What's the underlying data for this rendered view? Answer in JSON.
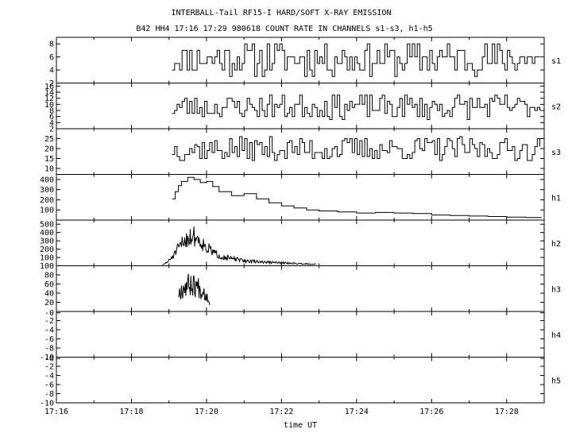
{
  "title_line1": "INTERBALL-Tail RF15-I HARD/SOFT X-RAY EMISSION",
  "title_line2": "B42 HH4 17:16 17:29 980618  COUNT RATE IN CHANNELS s1-s3, h1-h5",
  "xlabel": "time UT",
  "x_ticks": [
    "17:16",
    "17:18",
    "17:20",
    "17:22",
    "17:24",
    "17:26",
    "17:28"
  ],
  "chart_data": [
    {
      "type": "line",
      "name": "s1",
      "ylim": [
        2,
        9
      ],
      "yticks": [
        "8",
        "6",
        "4",
        "2"
      ],
      "ytick_values": [
        8,
        6,
        4,
        2
      ],
      "x_range": [
        "17:19:05",
        "17:28:55"
      ],
      "baseline": 5,
      "amplitude": 2.5,
      "seed": 11,
      "series": [
        {
          "name": "s1",
          "x": [],
          "y": []
        }
      ]
    },
    {
      "type": "line",
      "name": "s2",
      "ylim": [
        2,
        17
      ],
      "yticks": [
        "16",
        "14",
        "12",
        "10",
        "8",
        "6",
        "4",
        "2"
      ],
      "ytick_values": [
        16,
        14,
        12,
        10,
        8,
        6,
        4,
        2
      ],
      "x_range": [
        "17:19:05",
        "17:28:55"
      ],
      "baseline": 8,
      "amplitude": 4,
      "seed": 23,
      "series": [
        {
          "name": "s2",
          "x": [],
          "y": []
        }
      ]
    },
    {
      "type": "line",
      "name": "s3",
      "ylim": [
        7,
        30
      ],
      "yticks": [
        "25",
        "20",
        "15",
        "10"
      ],
      "ytick_values": [
        25,
        20,
        15,
        10
      ],
      "x_range": [
        "17:19:05",
        "17:28:55"
      ],
      "baseline": 18,
      "amplitude": 6,
      "seed": 37,
      "series": [
        {
          "name": "s3",
          "x": [],
          "y": []
        }
      ]
    },
    {
      "type": "line",
      "name": "h1",
      "ylim": [
        0,
        450
      ],
      "yticks": [
        "400",
        "300",
        "200",
        "100"
      ],
      "ytick_values": [
        400,
        300,
        200,
        100
      ],
      "series": [
        {
          "name": "h1",
          "x": [
            "17:19:05",
            "17:19:10",
            "17:19:15",
            "17:19:20",
            "17:19:30",
            "17:19:40",
            "17:19:50",
            "17:20:00",
            "17:20:10",
            "17:20:20",
            "17:20:40",
            "17:21:00",
            "17:21:20",
            "17:21:40",
            "17:22:00",
            "17:22:20",
            "17:22:40",
            "17:23:00",
            "17:23:30",
            "17:24:00",
            "17:24:30",
            "17:25:00",
            "17:25:30",
            "17:26:00",
            "17:26:30",
            "17:27:00",
            "17:27:30",
            "17:28:00",
            "17:28:30",
            "17:28:55"
          ],
          "y": [
            210,
            280,
            340,
            380,
            420,
            400,
            370,
            380,
            330,
            280,
            240,
            260,
            210,
            170,
            140,
            120,
            100,
            90,
            80,
            70,
            75,
            70,
            65,
            50,
            45,
            40,
            35,
            30,
            25,
            20
          ]
        }
      ]
    },
    {
      "type": "line",
      "name": "h2",
      "ylim": [
        0,
        550
      ],
      "yticks": [
        "500",
        "400",
        "300",
        "200",
        "100"
      ],
      "ytick_values": [
        500,
        400,
        300,
        200,
        100
      ],
      "series": [
        {
          "name": "h2",
          "x": [
            "17:18:50",
            "17:19:00",
            "17:19:10",
            "17:19:20",
            "17:19:30",
            "17:19:40",
            "17:19:50",
            "17:20:00",
            "17:20:15",
            "17:20:30",
            "17:20:45",
            "17:21:00",
            "17:21:30",
            "17:22:00",
            "17:22:30",
            "17:22:55"
          ],
          "y": [
            10,
            60,
            150,
            260,
            340,
            360,
            300,
            220,
            140,
            100,
            80,
            60,
            45,
            35,
            25,
            20
          ],
          "noise": 0.35,
          "seed": 51
        }
      ]
    },
    {
      "type": "line",
      "name": "h3",
      "ylim": [
        0,
        100
      ],
      "yticks": [
        "100",
        "80",
        "60",
        "40",
        "20"
      ],
      "ytick_values": [
        100,
        80,
        60,
        40,
        20
      ],
      "series": [
        {
          "name": "h3",
          "x": [
            "17:19:15",
            "17:19:25",
            "17:19:35",
            "17:19:45",
            "17:19:55",
            "17:20:05"
          ],
          "y": [
            40,
            55,
            60,
            55,
            45,
            25
          ],
          "noise": 0.45,
          "seed": 67
        }
      ]
    },
    {
      "type": "line",
      "name": "h4",
      "ylim": [
        -10,
        0
      ],
      "yticks": [
        "-0",
        "-2",
        "-4",
        "-6",
        "-8",
        "-10"
      ],
      "ytick_values": [
        -0.3,
        -2,
        -4,
        -6,
        -8,
        -10
      ],
      "series": [
        {
          "name": "h4",
          "x": [],
          "y": []
        }
      ]
    },
    {
      "type": "line",
      "name": "h5",
      "ylim": [
        -10,
        0
      ],
      "yticks": [
        "-0",
        "-2",
        "-4",
        "-6",
        "-8",
        "-10"
      ],
      "ytick_values": [
        -0.3,
        -2,
        -4,
        -6,
        -8,
        -10
      ],
      "series": [
        {
          "name": "h5",
          "x": [],
          "y": []
        }
      ]
    }
  ]
}
